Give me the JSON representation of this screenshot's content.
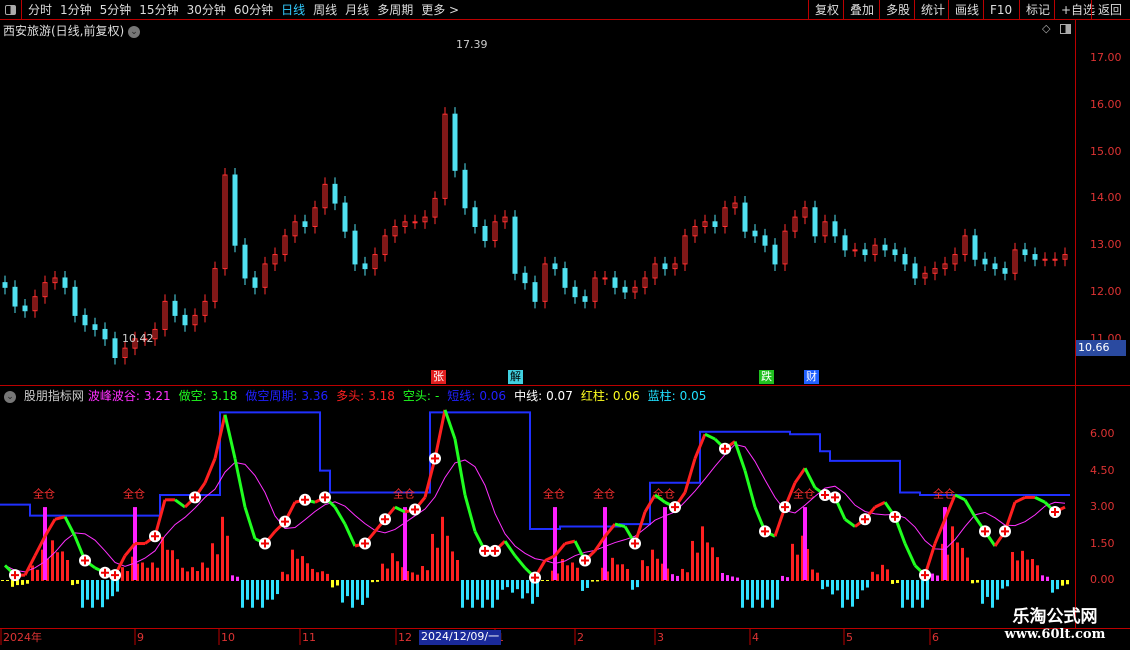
{
  "toolbar": {
    "periods": [
      "分时",
      "1分钟",
      "5分钟",
      "15分钟",
      "30分钟",
      "60分钟",
      "日线",
      "周线",
      "月线",
      "多周期",
      "更多 >"
    ],
    "active": "日线",
    "right_buttons": [
      "复权",
      "叠加",
      "多股",
      "统计",
      "画线",
      "F10",
      "标记",
      "+自选",
      "返回"
    ]
  },
  "title": "西安旅游(日线,前复权)",
  "price_axis": {
    "labels": [
      "17.00",
      "16.00",
      "15.00",
      "14.00",
      "13.00",
      "12.00",
      "11.00"
    ],
    "current": "10.66",
    "high_label": "17.39",
    "low_label": "10.42"
  },
  "price_closes": [
    12.1,
    11.7,
    11.6,
    11.9,
    12.2,
    12.3,
    12.1,
    11.5,
    11.3,
    11.2,
    11.0,
    10.6,
    10.8,
    11.0,
    11.0,
    11.2,
    11.8,
    11.5,
    11.3,
    11.5,
    11.8,
    12.5,
    14.5,
    13.0,
    12.3,
    12.1,
    12.6,
    12.8,
    13.2,
    13.5,
    13.4,
    13.8,
    14.3,
    13.9,
    13.3,
    12.6,
    12.5,
    12.8,
    13.2,
    13.4,
    13.5,
    13.5,
    13.6,
    14.0,
    15.8,
    14.6,
    13.8,
    13.4,
    13.1,
    13.5,
    13.6,
    12.4,
    12.2,
    11.8,
    12.6,
    12.5,
    12.1,
    11.9,
    11.8,
    12.3,
    12.3,
    12.1,
    12.0,
    12.1,
    12.3,
    12.6,
    12.5,
    12.6,
    13.2,
    13.4,
    13.5,
    13.4,
    13.8,
    13.9,
    13.3,
    13.2,
    13.0,
    12.6,
    13.3,
    13.6,
    13.8,
    13.2,
    13.5,
    13.2,
    12.9,
    12.9,
    12.8,
    13.0,
    12.9,
    12.8,
    12.6,
    12.3,
    12.4,
    12.5,
    12.6,
    12.8,
    13.2,
    12.7,
    12.6,
    12.5,
    12.4,
    12.9,
    12.8,
    12.7,
    12.7,
    12.7,
    12.8
  ],
  "signals": [
    {
      "text": "张",
      "color": "#e02020",
      "fg": "#fff"
    },
    {
      "text": "解",
      "color": "#40d0e0",
      "fg": "#000"
    },
    {
      "text": "跌",
      "color": "#20c020",
      "fg": "#fff"
    },
    {
      "text": "财",
      "color": "#2060ff",
      "fg": "#fff"
    }
  ],
  "indicator": {
    "name": "股朋指标网",
    "fields": [
      {
        "label": "波峰波谷:",
        "value": "3.21",
        "color": "#ff30ff"
      },
      {
        "label": "做空:",
        "value": "3.18",
        "color": "#20ff20"
      },
      {
        "label": "做空周期:",
        "value": "3.36",
        "color": "#2020ff"
      },
      {
        "label": "多头:",
        "value": "3.18",
        "color": "#ff2020"
      },
      {
        "label": "空头:",
        "value": "-",
        "color": "#20ff20"
      },
      {
        "label": "短线:",
        "value": "0.06",
        "color": "#2020ff"
      },
      {
        "label": "中线:",
        "value": "0.07",
        "color": "#ffffff"
      },
      {
        "label": "红柱:",
        "value": "0.06",
        "color": "#ffff20"
      },
      {
        "label": "蓝柱:",
        "value": "0.05",
        "color": "#20e0ff"
      }
    ],
    "axis": [
      "6.00",
      "4.50",
      "3.00",
      "1.50",
      "0.00"
    ],
    "osc": [
      0.6,
      0.2,
      0.2,
      1.0,
      1.8,
      2.5,
      2.6,
      1.8,
      0.8,
      0.5,
      0.3,
      0.2,
      1.0,
      1.5,
      1.5,
      1.8,
      3.3,
      3.3,
      3.0,
      3.4,
      4.0,
      5.0,
      6.8,
      5.0,
      3.0,
      1.7,
      1.5,
      2.0,
      2.4,
      3.2,
      3.3,
      3.2,
      3.4,
      3.0,
      2.3,
      1.4,
      1.5,
      2.0,
      2.5,
      3.0,
      2.8,
      2.9,
      3.4,
      5.0,
      7.0,
      5.8,
      3.5,
      2.0,
      1.2,
      1.2,
      1.6,
      1.0,
      0.5,
      0.1,
      0.8,
      1.0,
      1.5,
      1.6,
      0.8,
      1.2,
      1.8,
      2.3,
      2.2,
      1.5,
      2.8,
      3.5,
      3.2,
      3.0,
      3.6,
      5.0,
      6.0,
      5.8,
      5.4,
      5.7,
      4.5,
      3.0,
      2.0,
      1.8,
      3.0,
      4.0,
      4.6,
      3.8,
      3.5,
      3.4,
      2.5,
      2.2,
      2.5,
      3.0,
      3.2,
      2.6,
      1.5,
      0.6,
      0.2,
      1.5,
      2.5,
      3.5,
      3.3,
      2.6,
      2.0,
      1.4,
      2.0,
      3.2,
      3.4,
      3.4,
      3.2,
      2.8,
      3.0
    ],
    "cycle": [
      3.1,
      3.1,
      3.1,
      2.65,
      2.65,
      2.65,
      2.65,
      2.65,
      2.65,
      2.65,
      2.65,
      2.65,
      2.65,
      2.65,
      2.65,
      2.65,
      3.5,
      3.5,
      3.5,
      3.5,
      3.5,
      3.5,
      6.9,
      6.9,
      6.9,
      6.9,
      6.9,
      6.9,
      6.9,
      6.9,
      6.9,
      6.9,
      4.5,
      3.6,
      3.6,
      3.6,
      3.6,
      3.6,
      3.6,
      3.6,
      3.6,
      3.6,
      3.6,
      6.9,
      6.9,
      6.9,
      6.9,
      6.9,
      6.9,
      6.9,
      6.9,
      6.9,
      6.9,
      2.1,
      2.1,
      2.1,
      2.2,
      2.2,
      2.2,
      2.2,
      2.2,
      2.2,
      2.3,
      2.3,
      2.3,
      4.0,
      4.0,
      4.0,
      4.0,
      4.0,
      6.1,
      6.1,
      6.1,
      6.1,
      6.1,
      6.1,
      6.1,
      6.1,
      6.1,
      6.0,
      6.0,
      6.0,
      5.3,
      4.9,
      4.9,
      4.9,
      4.9,
      4.9,
      4.9,
      4.9,
      3.6,
      3.6,
      3.5,
      3.5,
      3.5,
      3.5,
      3.5,
      3.5,
      3.5,
      3.5,
      3.5,
      3.5,
      3.5,
      3.5,
      3.5,
      3.5,
      3.5
    ],
    "full_position_label": "全仓",
    "full_position_idx": [
      4,
      13,
      40,
      55,
      60,
      66,
      80,
      94
    ],
    "buy_marks_idx": [
      1,
      8,
      10,
      11,
      15,
      19,
      26,
      28,
      30,
      32,
      36,
      38,
      41,
      43,
      48,
      49,
      53,
      58,
      63,
      67,
      72,
      76,
      78,
      82,
      83,
      86,
      89,
      92,
      98,
      100,
      105
    ]
  },
  "xaxis": [
    {
      "text": "2024年",
      "x": 3
    },
    {
      "text": "9",
      "x": 137
    },
    {
      "text": "10",
      "x": 221
    },
    {
      "text": "11",
      "x": 302
    },
    {
      "text": "12",
      "x": 398
    },
    {
      "text": "1",
      "x": 497
    },
    {
      "text": "2",
      "x": 577
    },
    {
      "text": "3",
      "x": 657
    },
    {
      "text": "4",
      "x": 752
    },
    {
      "text": "5",
      "x": 846
    },
    {
      "text": "6",
      "x": 932
    }
  ],
  "cursor_date": "2024/12/09/一",
  "watermark": {
    "name": "乐淘公式网",
    "url": "www.60lt.com"
  }
}
